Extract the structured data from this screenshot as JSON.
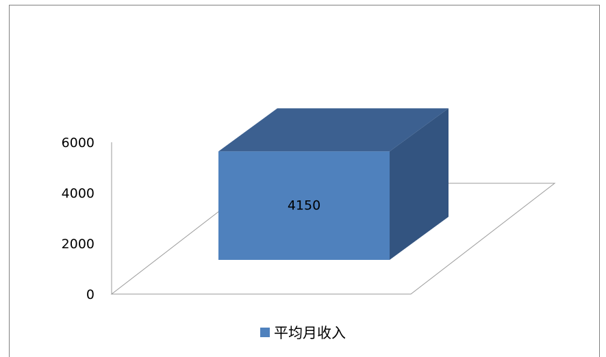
{
  "chart_data": {
    "type": "bar",
    "style": "3d",
    "categories": [
      ""
    ],
    "series": [
      {
        "name": "平均月收入",
        "values": [
          4150
        ],
        "color": "#4f81bd"
      }
    ],
    "data_labels": [
      "4150"
    ],
    "y_ticks": [
      "0",
      "2000",
      "4000",
      "6000"
    ],
    "ylim": [
      0,
      6000
    ],
    "legend": {
      "position": "bottom",
      "labels": [
        "平均月收入"
      ]
    },
    "grid": false
  },
  "colors": {
    "front": "#4f81bd",
    "top": "#3c6090",
    "side": "#335480",
    "floor_line": "#9a9a9a",
    "frame": "#7f7f7f"
  }
}
